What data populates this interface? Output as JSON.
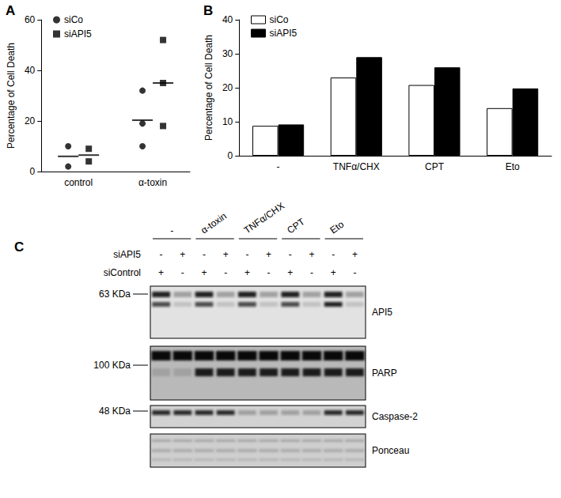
{
  "chart_data": [
    {
      "type": "scatter",
      "title": "A",
      "categories": [
        "control",
        "α-toxin"
      ],
      "y_label": "Percentage of Cell Death",
      "ylim": [
        0,
        60
      ],
      "yticks": [
        0,
        20,
        40,
        60
      ],
      "grid": false,
      "legend": "top-left",
      "series": [
        {
          "name": "siCo",
          "color": "#000000",
          "marker": "circle",
          "values": [
            [
              10,
              2
            ],
            [
              32,
              19,
              10
            ]
          ],
          "means": [
            6,
            20.3
          ]
        },
        {
          "name": "siAPI5",
          "color": "#000000",
          "marker": "square",
          "values": [
            [
              9,
              4
            ],
            [
              52,
              35,
              18
            ]
          ],
          "means": [
            6.5,
            35
          ]
        }
      ]
    },
    {
      "type": "bar",
      "title": "B",
      "categories": [
        "-",
        "TNFα/CHX",
        "CPT",
        "Eto"
      ],
      "y_label": "Percentage of Cell Death",
      "ylim": [
        0,
        40
      ],
      "yticks": [
        0,
        10,
        20,
        30,
        40
      ],
      "grid": false,
      "legend": "top-left",
      "series": [
        {
          "name": "siCo",
          "color": "#ffffff",
          "values": [
            8.8,
            23,
            20.8,
            14
          ]
        },
        {
          "name": "siAPI5",
          "color": "#000000",
          "values": [
            9.2,
            29,
            26,
            19.8
          ]
        }
      ]
    }
  ],
  "blot": {
    "label": "C",
    "groups": [
      "-",
      "α-toxin",
      "TNFα/CHX",
      "CPT",
      "Eto"
    ],
    "rows": [
      {
        "name": "siAPI5",
        "signs": [
          "-",
          "+",
          "-",
          "+",
          "-",
          "+",
          "-",
          "+",
          "-",
          "+"
        ]
      },
      {
        "name": "siControl",
        "signs": [
          "+",
          "-",
          "+",
          "-",
          "+",
          "-",
          "+",
          "-",
          "+",
          "-"
        ]
      }
    ],
    "panels": [
      "API5",
      "PARP",
      "Caspase-2",
      "Ponceau"
    ],
    "markers": [
      {
        "label": "63 KDa",
        "panel": "API5"
      },
      {
        "label": "100 KDa",
        "panel": "PARP"
      },
      {
        "label": "48 KDa",
        "panel": "Caspase-2"
      }
    ]
  }
}
